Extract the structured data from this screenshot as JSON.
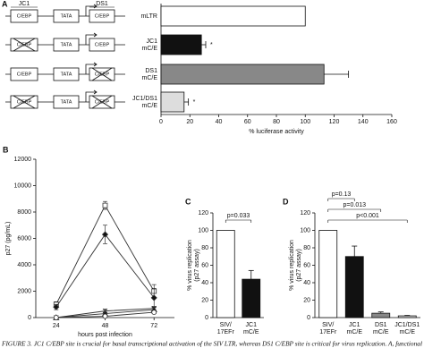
{
  "chart_data": [
    {
      "panel": "A",
      "type": "hbar",
      "categories": [
        [
          "mLTR"
        ],
        [
          "JC1",
          "mC/E"
        ],
        [
          "DS1",
          "mC/E"
        ],
        [
          "JC1/DS1",
          "mC/E"
        ]
      ],
      "values": [
        100,
        28,
        113,
        16
      ],
      "errors": [
        0,
        3,
        17,
        3
      ],
      "colors": [
        "#ffffff",
        "#111111",
        "#888888",
        "#dddddd"
      ],
      "annotations": [
        null,
        "*",
        null,
        "*"
      ],
      "xlim": [
        0,
        160
      ],
      "xticks": [
        0,
        20,
        40,
        60,
        80,
        100,
        120,
        140,
        160
      ],
      "xlabel": "% luciferase activity",
      "diagram": {
        "sites": [
          "JC1",
          "DS1"
        ],
        "rows": [
          {
            "boxes": [
              "C/EBP",
              "TATA",
              "C/EBP"
            ],
            "mutated": [
              false,
              false,
              false
            ]
          },
          {
            "boxes": [
              "C/EBP",
              "TATA",
              "C/EBP"
            ],
            "mutated": [
              true,
              false,
              false
            ]
          },
          {
            "boxes": [
              "C/EBP",
              "TATA",
              "C/EBP"
            ],
            "mutated": [
              false,
              false,
              true
            ]
          },
          {
            "boxes": [
              "C/EBP",
              "TATA",
              "C/EBP"
            ],
            "mutated": [
              true,
              false,
              true
            ]
          }
        ]
      }
    },
    {
      "panel": "B",
      "type": "line",
      "x": [
        24,
        48,
        72
      ],
      "xlim": [
        14,
        82
      ],
      "xticks": [
        24,
        48,
        72
      ],
      "ylim": [
        0,
        12000
      ],
      "yticks": [
        0,
        2000,
        4000,
        6000,
        8000,
        10000,
        12000
      ],
      "xlabel": "hours post infection",
      "ylabel": "p27 (pg/mL)",
      "series": [
        {
          "marker": "square-open",
          "color": "#333333",
          "values": [
            1000,
            8500,
            2000
          ],
          "errors": [
            200,
            300,
            500
          ]
        },
        {
          "marker": "diamond",
          "color": "#333333",
          "values": [
            800,
            6300,
            1500
          ],
          "errors": [
            200,
            700,
            700
          ]
        },
        {
          "marker": "cross",
          "color": "#333333",
          "values": [
            0,
            500,
            700
          ],
          "errors": [
            50,
            150,
            150
          ]
        },
        {
          "marker": "triangle",
          "color": "#333333",
          "values": [
            0,
            300,
            600
          ],
          "errors": [
            50,
            100,
            150
          ]
        },
        {
          "marker": "circle-open",
          "color": "#333333",
          "values": [
            0,
            100,
            400
          ],
          "errors": [
            50,
            50,
            100
          ]
        }
      ]
    },
    {
      "panel": "C",
      "type": "bar",
      "categories": [
        [
          "SIV/",
          "17EFr"
        ],
        [
          "JC1",
          "mC/E"
        ]
      ],
      "values": [
        100,
        44
      ],
      "errors": [
        0,
        10
      ],
      "colors": [
        "#ffffff",
        "#111111"
      ],
      "ylim": [
        0,
        120
      ],
      "yticks": [
        0,
        20,
        40,
        60,
        80,
        100,
        120
      ],
      "ylabel": [
        "% virus replication",
        "(p27 assay)"
      ],
      "comparisons": [
        {
          "from": 0,
          "to": 1,
          "label": "p=0.033"
        }
      ]
    },
    {
      "panel": "D",
      "type": "bar",
      "categories": [
        [
          "SIV/",
          "17EFr"
        ],
        [
          "JC1",
          "mC/E"
        ],
        [
          "DS1",
          "mC/E"
        ],
        [
          "JC1/DS1",
          "mC/E"
        ]
      ],
      "values": [
        100,
        70,
        5,
        2
      ],
      "errors": [
        0,
        12,
        1.5,
        0.5
      ],
      "colors": [
        "#ffffff",
        "#111111",
        "#888888",
        "#dddddd"
      ],
      "ylim": [
        0,
        120
      ],
      "yticks": [
        0,
        20,
        40,
        60,
        80,
        100,
        120
      ],
      "ylabel": [
        "% virus replication",
        "(p27 assay)"
      ],
      "comparisons": [
        {
          "from": 0,
          "to": 1,
          "label": "p=0.13"
        },
        {
          "from": 0,
          "to": 2,
          "label": "p=0.013"
        },
        {
          "from": 0,
          "to": 3,
          "label": "p<0.001"
        }
      ]
    }
  ],
  "caption": "FIGURE 3. JC1 C/EBP site is crucial for basal transcriptional activation of the SIV LTR, whereas DS1 C/EBP site is critical for virus replication. A, functional"
}
